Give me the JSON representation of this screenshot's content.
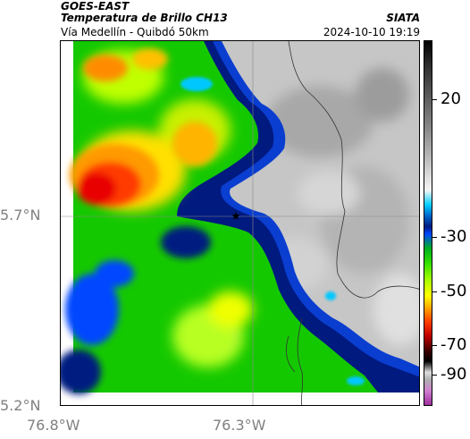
{
  "header": {
    "satellite": "GOES-EAST",
    "product": "Temperatura de Brillo CH13",
    "location": "Vía Medellín - Quibdó 50km",
    "organization": "SIATA",
    "datetime": "2024-10-10 19:19"
  },
  "map": {
    "lat_labels": [
      "5.7°N",
      "5.2°N"
    ],
    "lon_labels": [
      "76.8°W",
      "76.3°W"
    ],
    "marker": "star"
  },
  "colorbar": {
    "labels": [
      "20",
      "-30",
      "-50",
      "-70",
      "-90"
    ],
    "colors": {
      "clear_gray": "#c8c8c8",
      "cold_blue": "#0047ff",
      "dark_blue": "#001a80",
      "green": "#00c000",
      "yellow": "#ffff00",
      "orange": "#ff9000",
      "red": "#ff2000"
    }
  }
}
